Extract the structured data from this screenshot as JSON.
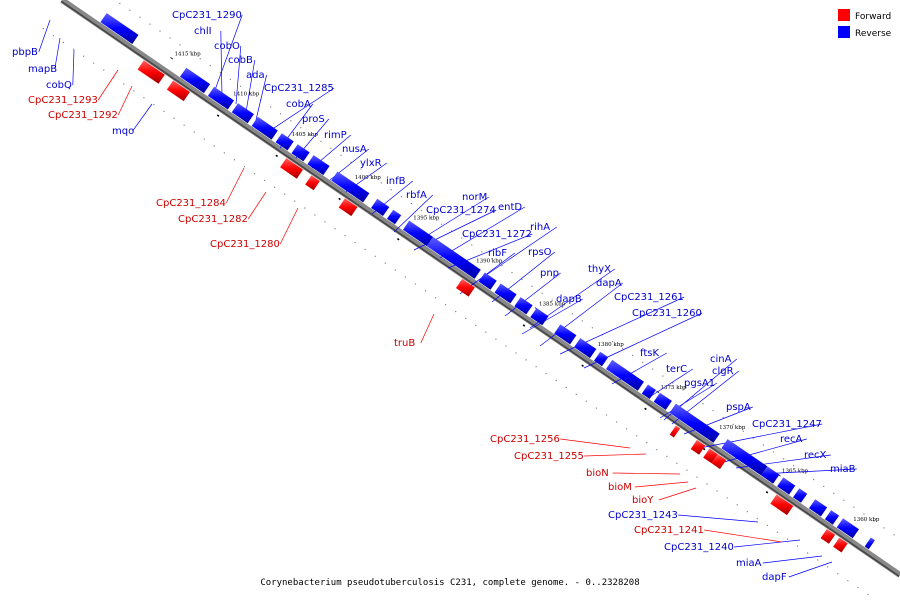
{
  "caption": "Corynebacterium pseudotuberculosis C231, complete genome. - 0..2328208",
  "legend": [
    {
      "label": "Forward",
      "color": "#ff0000"
    },
    {
      "label": "Reverse",
      "color": "#0000ff"
    }
  ],
  "ticks": [
    "1415 kbp",
    "1410 kbp",
    "1405 kbp",
    "1400 kbp",
    "1395 kbp",
    "1390 kbp",
    "1385 kbp",
    "1380 kbp",
    "1375 kbp",
    "1370 kbp",
    "1365 kbp",
    "1360 kbp"
  ],
  "genes_forward": [
    "CpC231_1293",
    "CpC231_1292",
    "CpC231_1284",
    "CpC231_1282",
    "CpC231_1280",
    "truB",
    "CpC231_1256",
    "CpC231_1255",
    "bioN",
    "bioM",
    "bioY",
    "CpC231_1241"
  ],
  "genes_reverse": [
    "pbpB",
    "mapB",
    "cobQ",
    "mqo",
    "CpC231_1290",
    "chlI",
    "cobO",
    "cobB",
    "ada",
    "CpC231_1285",
    "cobA",
    "proS",
    "rimP",
    "nusA",
    "ylxR",
    "infB",
    "rbfA",
    "norM",
    "CpC231_1274",
    "entD",
    "CpC231_1272",
    "rihA",
    "ribF",
    "rpsO",
    "pnp",
    "thyX",
    "dapB",
    "dapA",
    "CpC231_1261",
    "CpC231_1260",
    "ftsK",
    "terC",
    "cinA",
    "clgR",
    "pgsA1",
    "pspA",
    "CpC231_1247",
    "recA",
    "recX",
    "miaB",
    "CpC231_1243",
    "CpC231_1240",
    "miaA",
    "dapF"
  ]
}
